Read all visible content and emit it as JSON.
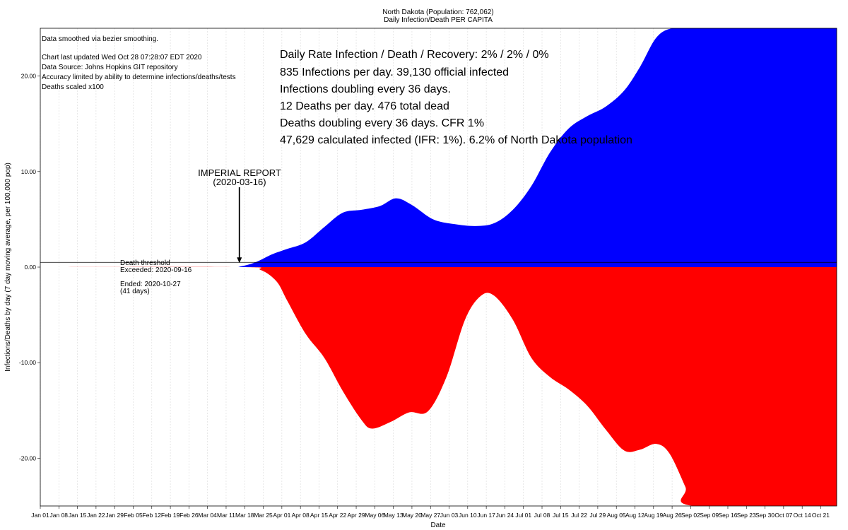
{
  "header": {
    "title": "North Dakota (Population: 762,062)",
    "subtitle": "Daily Infection/Death PER CAPITA"
  },
  "notes": {
    "smoothing": "Data smoothed via bezier smoothing.",
    "updated": "Chart last updated Wed Oct 28 07:28:07 EDT 2020",
    "source": "Data Source: Johns Hopkins GIT repository",
    "accuracy": "Accuracy limited by ability to determine infections/deaths/tests",
    "scaling": "Deaths scaled x100"
  },
  "stats": [
    "Daily Rate Infection / Death / Recovery: 2% / 2% / 0%",
    "835 Infections per day.  39,130 official infected",
    "Infections doubling every 36 days.",
    "12 Deaths per day.  476 total dead",
    "Deaths doubling every 36 days.  CFR 1%",
    "47,629 calculated infected (IFR: 1%).  6.2% of North Dakota population"
  ],
  "imperial": {
    "label": "IMPERIAL REPORT",
    "date": "(2020-03-16)",
    "x": "2020-03-16"
  },
  "threshold": {
    "label": "Death threshold",
    "exceeded": "Exceeded: 2020-09-16",
    "ended": "Ended: 2020-10-27",
    "days": "(41 days)",
    "y": 0.5
  },
  "chart_data": {
    "type": "area",
    "xlabel": "Date",
    "ylabel": "Infections/Deaths by day (7 day moving average, per 100,000 pop)",
    "ylim": [
      -25,
      25
    ],
    "yticks": [
      "20.00",
      "10.00",
      "0.00",
      "-10.00",
      "-20.00"
    ],
    "ytick_values": [
      20,
      10,
      0,
      -10,
      -20
    ],
    "x_start": "2020-01-01",
    "x_end": "2020-10-27",
    "xticks": [
      "Jan 01",
      "Jan 08",
      "Jan 15",
      "Jan 22",
      "Jan 29",
      "Feb 05",
      "Feb 12",
      "Feb 19",
      "Feb 26",
      "Mar 04",
      "Mar 11",
      "Mar 18",
      "Mar 25",
      "Apr 01",
      "Apr 08",
      "Apr 15",
      "Apr 22",
      "Apr 29",
      "May 06",
      "May 13",
      "May 20",
      "May 27",
      "Jun 03",
      "Jun 10",
      "Jun 17",
      "Jun 24",
      "Jul 01",
      "Jul 08",
      "Jul 15",
      "Jul 22",
      "Jul 29",
      "Aug 05",
      "Aug 12",
      "Aug 19",
      "Aug 26",
      "Sep 02",
      "Sep 09",
      "Sep 16",
      "Sep 23",
      "Sep 30",
      "Oct 07",
      "Oct 14",
      "Oct 21"
    ],
    "grid": true,
    "series": [
      {
        "color": "#0000ff",
        "x": [
          "2020-01-01",
          "2020-03-10",
          "2020-03-16",
          "2020-03-22",
          "2020-03-28",
          "2020-04-03",
          "2020-04-10",
          "2020-04-17",
          "2020-04-24",
          "2020-05-01",
          "2020-05-08",
          "2020-05-14",
          "2020-05-20",
          "2020-05-28",
          "2020-06-05",
          "2020-06-13",
          "2020-06-20",
          "2020-06-27",
          "2020-07-04",
          "2020-07-11",
          "2020-07-18",
          "2020-07-25",
          "2020-08-01",
          "2020-08-08",
          "2020-08-14",
          "2020-08-20",
          "2020-08-26",
          "2020-09-04",
          "2020-10-27"
        ],
        "values": [
          0,
          0,
          0.05,
          0.5,
          1.3,
          1.9,
          2.6,
          4.2,
          5.7,
          6.0,
          6.4,
          7.2,
          6.5,
          5.0,
          4.5,
          4.3,
          4.6,
          6.0,
          8.5,
          12.0,
          14.5,
          15.8,
          16.8,
          18.5,
          21.0,
          24.0,
          27.0,
          27.0,
          27.0
        ]
      },
      {
        "color": "#ff0000",
        "x": [
          "2020-01-01",
          "2020-03-16",
          "2020-03-24",
          "2020-03-30",
          "2020-04-03",
          "2020-04-10",
          "2020-04-17",
          "2020-04-24",
          "2020-05-01",
          "2020-05-05",
          "2020-05-12",
          "2020-05-19",
          "2020-05-26",
          "2020-06-02",
          "2020-06-09",
          "2020-06-15",
          "2020-06-20",
          "2020-06-27",
          "2020-07-04",
          "2020-07-11",
          "2020-07-18",
          "2020-07-25",
          "2020-08-01",
          "2020-08-08",
          "2020-08-14",
          "2020-08-20",
          "2020-08-25",
          "2020-08-31",
          "2020-09-03",
          "2020-10-27"
        ],
        "values": [
          0,
          0,
          -0.3,
          -1.5,
          -3.5,
          -7.0,
          -9.5,
          -13.0,
          -16.0,
          -16.9,
          -16.2,
          -15.2,
          -15.1,
          -11.5,
          -5.5,
          -3.0,
          -3.0,
          -5.5,
          -9.5,
          -11.5,
          -12.8,
          -14.5,
          -17.0,
          -19.2,
          -19.1,
          -18.5,
          -19.5,
          -23.0,
          -25.5,
          -25.5
        ]
      }
    ]
  }
}
